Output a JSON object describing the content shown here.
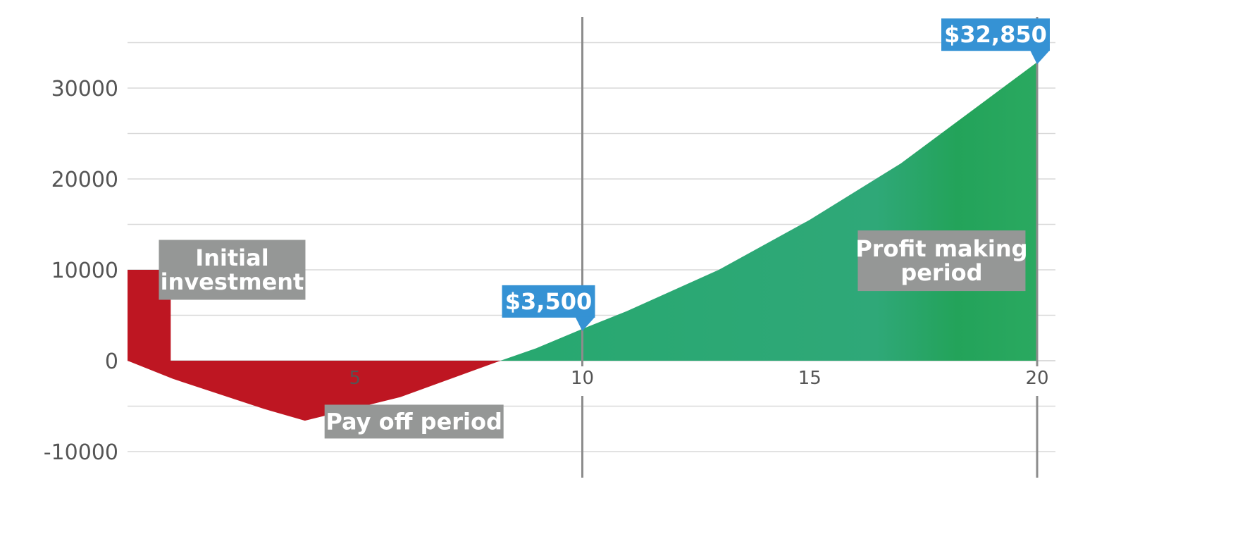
{
  "chart_data": {
    "type": "area",
    "title": "",
    "xlabel": "",
    "ylabel": "",
    "xlim": [
      0,
      20.1
    ],
    "ylim": [
      -11000,
      37000
    ],
    "x_ticks": [
      5,
      10,
      15,
      20
    ],
    "y_ticks": [
      -10000,
      0,
      10000,
      20000,
      30000
    ],
    "x_tick_labels": [
      "5",
      "10",
      "15",
      "20"
    ],
    "y_tick_labels": [
      "-10000",
      "0",
      "10000",
      "20000",
      "30000"
    ],
    "grid": "horizontal",
    "initial_investment": {
      "x_start": 0,
      "x_end": 0.95,
      "value": 10000
    },
    "series": [
      {
        "values": [
          {
            "x": 0,
            "y": 0
          },
          {
            "x": 1,
            "y": -2000
          },
          {
            "x": 3,
            "y": -5300
          },
          {
            "x": 3.9,
            "y": -6600
          },
          {
            "x": 6,
            "y": -4000
          },
          {
            "x": 8.2,
            "y": 0
          }
        ]
      },
      {
        "values": [
          {
            "x": 8.2,
            "y": 0
          },
          {
            "x": 9,
            "y": 1400
          },
          {
            "x": 10,
            "y": 3500
          },
          {
            "x": 11,
            "y": 5500
          },
          {
            "x": 13,
            "y": 10000
          },
          {
            "x": 15,
            "y": 15500
          },
          {
            "x": 17,
            "y": 21700
          },
          {
            "x": 20,
            "y": 32850
          }
        ]
      }
    ],
    "vertical_markers": [
      10,
      20
    ],
    "colors": {
      "loss": "#be1622",
      "profit": "#2ca772",
      "grid": "#d9d9d9",
      "marker": "#8c8c8c",
      "label_box": "#959796",
      "callout": "#3592d4"
    },
    "annotations": {
      "initial_investment": {
        "lines": [
          "Initial",
          "investment"
        ],
        "x": 2.3,
        "y": 10000
      },
      "pay_off": {
        "lines": [
          "Pay off period"
        ],
        "x": 6.3,
        "y": -6700
      },
      "profit_making": {
        "lines": [
          "Profit making",
          "period"
        ],
        "x": 17.9,
        "y": 11000
      },
      "callout_mid": {
        "text": "$3,500",
        "x": 10,
        "y": 3500,
        "pointer": "bottom-right"
      },
      "callout_end": {
        "text": "$32,850",
        "x": 20,
        "y": 32850,
        "pointer": "bottom-right"
      }
    }
  }
}
